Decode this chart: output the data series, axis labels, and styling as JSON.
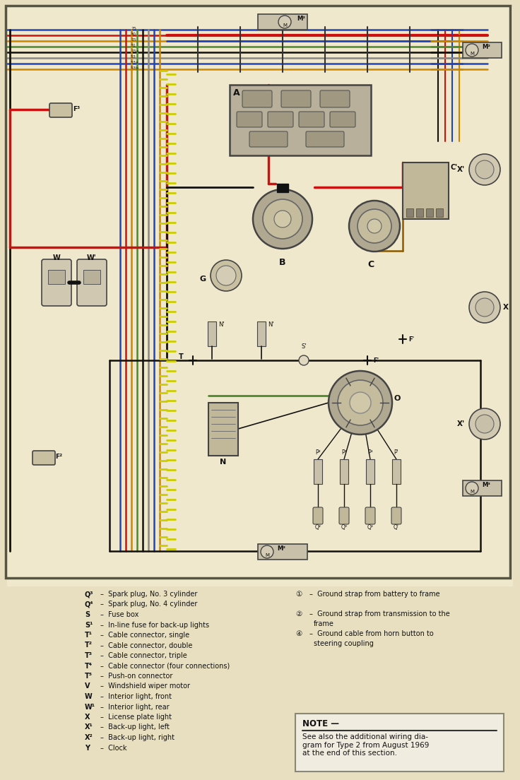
{
  "bg_color": "#e8dfc0",
  "diagram_bg": "#f0e8cc",
  "wire_colors": {
    "red": "#cc1111",
    "black": "#111111",
    "blue": "#2244bb",
    "green": "#4a8a2a",
    "yellow": "#ddcc00",
    "brown": "#8B5A2B",
    "gray": "#888888",
    "white": "#eeeeee",
    "orange": "#cc6600",
    "darkred": "#990000"
  },
  "legend_left": [
    [
      "Q³",
      "Spark plug, No. 3 cylinder"
    ],
    [
      "Q⁴",
      "Spark plug, No. 4 cylinder"
    ],
    [
      "S",
      "Fuse box"
    ],
    [
      "S¹",
      "In-line fuse for back-up lights"
    ],
    [
      "T¹",
      "Cable connector, single"
    ],
    [
      "T²",
      "Cable connector, double"
    ],
    [
      "T³",
      "Cable connector, triple"
    ],
    [
      "T⁴",
      "Cable connector (four connections)"
    ],
    [
      "T⁵",
      "Push-on connector"
    ],
    [
      "V",
      "Windshield wiper motor"
    ],
    [
      "W",
      "Interior light, front"
    ],
    [
      "W¹",
      "Interior light, rear"
    ],
    [
      "X",
      "License plate light"
    ],
    [
      "X¹",
      "Back-up light, left"
    ],
    [
      "X²",
      "Back-up light, right"
    ],
    [
      "Y",
      "Clock"
    ]
  ],
  "legend_right": [
    [
      "①",
      "Ground strap from battery to frame"
    ],
    [
      "②",
      "Ground strap from transmission to the frame"
    ],
    [
      "④",
      "Ground cable from horn button to steering coupling"
    ]
  ],
  "note_title": "NOTE —",
  "note_text": "See also the additional wiring dia-\ngram for Type 2 from August 1969\nat the end of this section."
}
